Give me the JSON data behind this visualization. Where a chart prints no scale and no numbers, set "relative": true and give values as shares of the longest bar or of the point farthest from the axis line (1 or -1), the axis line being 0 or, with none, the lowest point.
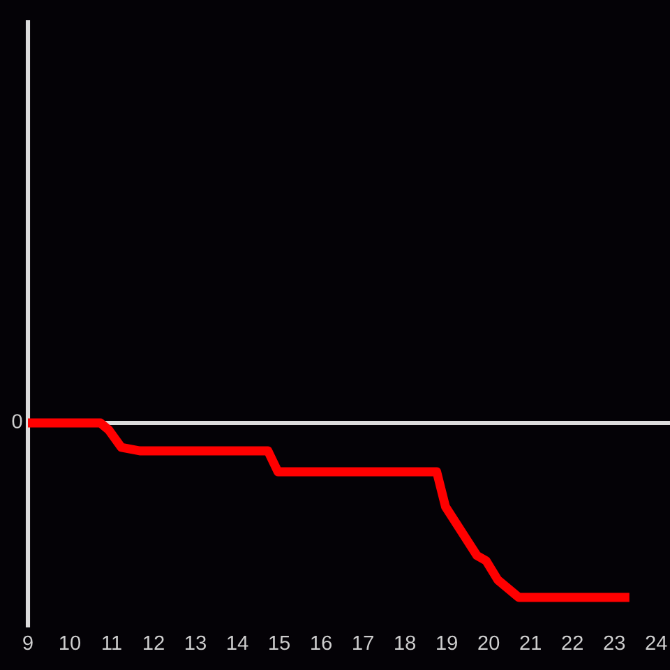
{
  "chart_data": {
    "type": "line",
    "relative": true,
    "x": [
      9,
      10.73,
      10.93,
      11.23,
      11.67,
      14.73,
      14.97,
      18.76,
      18.97,
      19.72,
      19.94,
      20.22,
      20.72,
      23.36
    ],
    "series": [
      {
        "color": "#ff0000",
        "values": [
          0,
          0,
          -0.04,
          -0.14,
          -0.16,
          -0.16,
          -0.28,
          -0.28,
          -0.48,
          -0.76,
          -0.79,
          -0.9,
          -1,
          -1
        ]
      }
    ],
    "xlim": [
      9,
      24.33
    ],
    "xticks": [
      9,
      10,
      11,
      12,
      13,
      14,
      15,
      16,
      17,
      18,
      19,
      20,
      21,
      22,
      23,
      24
    ],
    "ref_lines": [
      {
        "axis": "y",
        "value": 0,
        "label": "0",
        "color": "#dcdcdc"
      }
    ],
    "marker": "none",
    "line_style": "solid"
  }
}
